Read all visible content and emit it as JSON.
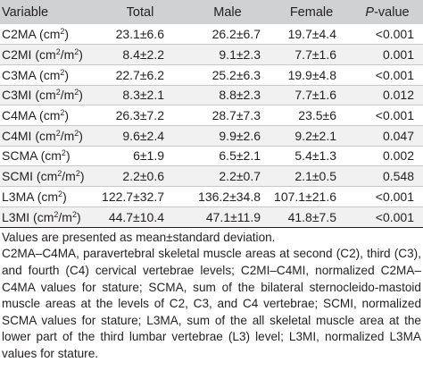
{
  "table": {
    "headers": {
      "variable": "Variable",
      "total": "Total",
      "male": "Male",
      "female": "Female",
      "p_prefix": "P",
      "p_suffix": "-value"
    },
    "rows": [
      {
        "var": "C2MA",
        "unit": "cm",
        "exp": "2",
        "unit_tail": ")",
        "total": "23.1±6.6",
        "male": "26.2±6.7",
        "female": "19.7±4.4",
        "p": "<0.001"
      },
      {
        "var": "C2MI",
        "unit": "cm",
        "exp": "2",
        "unit_mid": "/m",
        "exp2": "2",
        "total": "8.4±2.2",
        "male": "9.1±2.3",
        "female": "7.7±1.6",
        "p": "0.001"
      },
      {
        "var": "C3MA",
        "unit": "cm",
        "exp": "2",
        "total": "22.7±6.2",
        "male": "25.2±6.3",
        "female": "19.9±4.8",
        "p": "<0.001"
      },
      {
        "var": "C3MI",
        "unit": "cm",
        "exp": "2",
        "unit_mid": "/m",
        "exp2": "2",
        "total": "8.3±2.1",
        "male": "8.8±2.3",
        "female": "7.7±1.6",
        "p": "0.012"
      },
      {
        "var": "C4MA",
        "unit": "cm",
        "exp": "2",
        "total": "26.3±7.2",
        "male": "28.7±7.3",
        "female": "23.5±6",
        "p": "<0.001"
      },
      {
        "var": "C4MI",
        "unit": "cm",
        "exp": "2",
        "unit_mid": "/m",
        "exp2": "2",
        "total": "9.6±2.4",
        "male": "9.9±2.6",
        "female": "9.2±2.1",
        "p": "0.047"
      },
      {
        "var": "SCMA",
        "unit": "cm",
        "exp": "2",
        "total": "6±1.9",
        "male": "6.5±2.1",
        "female": "5.4±1.3",
        "p": "0.002"
      },
      {
        "var": "SCMI",
        "unit": "cm",
        "exp": "2",
        "unit_mid": "/m",
        "exp2": "2",
        "total": "2.2±0.6",
        "male": "2.2±0.7",
        "female": "2.1±0.5",
        "p": "0.548"
      },
      {
        "var": "L3MA",
        "unit": "cm",
        "exp": "2",
        "total": "122.7±32.7",
        "male": "136.2±34.8",
        "female": "107.1±21.6",
        "p": "<0.001"
      },
      {
        "var": "L3MI",
        "unit": "cm",
        "exp": "2",
        "unit_mid": "/m",
        "exp2": "2",
        "total": "44.7±10.4",
        "male": "47.1±11.9",
        "female": "41.8±7.5",
        "p": "<0.001"
      }
    ]
  },
  "notes": {
    "values_line": "Values are presented as mean±standard deviation.",
    "abbreviations": "C2MA–C4MA, paravertebral skeletal muscle areas at second (C2), third (C3), and fourth (C4) cervical vertebrae levels; C2MI–C4MI, normalized C2MA–C4MA values for stature; SCMA, sum of the bilateral sternocleido-mastoid muscle areas at the levels of C2, C3, and C4 vertebrae; SCMI, normalized SCMA values for stature; L3MA, sum of the all skeletal muscle area at the lower part of the third lumbar vertebrae (L3) level; L3MI, normalized L3MA values for stature."
  }
}
